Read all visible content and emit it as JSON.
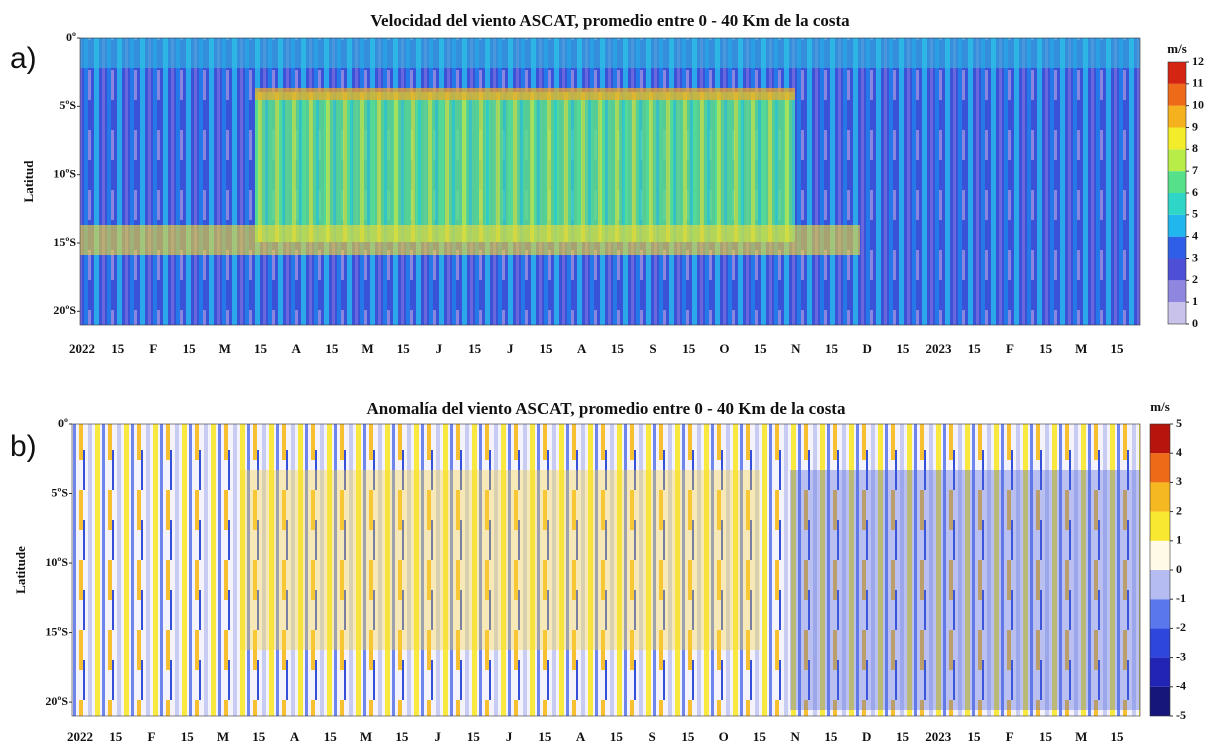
{
  "chart_data": [
    {
      "type": "heatmap",
      "panel_label": "a)",
      "title": "Velocidad del viento ASCAT, promedio entre 0 - 40 Km de la costa",
      "ylabel": "Latitud",
      "ylim": [
        -21,
        0
      ],
      "yticks": [
        {
          "value": 0,
          "label": "0º"
        },
        {
          "value": -5,
          "label": "5ºS"
        },
        {
          "value": -10,
          "label": "10ºS"
        },
        {
          "value": -15,
          "label": "15ºS"
        },
        {
          "value": -20,
          "label": "20ºS"
        }
      ],
      "categories": [
        "2022",
        "15",
        "F",
        "15",
        "M",
        "15",
        "A",
        "15",
        "M",
        "15",
        "J",
        "15",
        "J",
        "15",
        "A",
        "15",
        "S",
        "15",
        "O",
        "15",
        "N",
        "15",
        "D",
        "15",
        "2023",
        "15",
        "F",
        "15",
        "M",
        "15"
      ],
      "colorbar": {
        "label": "m/s",
        "lim": [
          0,
          12
        ],
        "ticks": [
          0,
          1,
          2,
          3,
          4,
          5,
          6,
          7,
          8,
          9,
          10,
          11,
          12
        ],
        "colors": [
          "#c9c3ec",
          "#8f86e0",
          "#4d4fd6",
          "#2f5fe6",
          "#22b6ee",
          "#2fd6c8",
          "#56e08a",
          "#b8ec46",
          "#f2ec2a",
          "#f6b21e",
          "#ee6a18",
          "#d42412"
        ]
      }
    },
    {
      "type": "heatmap",
      "panel_label": "b)",
      "title": "Anomalía del viento ASCAT, promedio entre 0 - 40 Km de la costa",
      "ylabel": "Latitude",
      "ylim": [
        -21,
        0
      ],
      "yticks": [
        {
          "value": 0,
          "label": "0º"
        },
        {
          "value": -5,
          "label": "5ºS"
        },
        {
          "value": -10,
          "label": "10ºS"
        },
        {
          "value": -15,
          "label": "15ºS"
        },
        {
          "value": -20,
          "label": "20ºS"
        }
      ],
      "categories": [
        "2022",
        "15",
        "F",
        "15",
        "M",
        "15",
        "A",
        "15",
        "M",
        "15",
        "J",
        "15",
        "J",
        "15",
        "A",
        "15",
        "S",
        "15",
        "O",
        "15",
        "N",
        "15",
        "D",
        "15",
        "2023",
        "15",
        "F",
        "15",
        "M",
        "15"
      ],
      "colorbar": {
        "label": "m/s",
        "lim": [
          -5,
          5
        ],
        "ticks": [
          -5,
          -4,
          -3,
          -2,
          -1,
          0,
          1,
          2,
          3,
          4,
          5
        ],
        "colors": [
          "#16167a",
          "#2124b4",
          "#2f46dc",
          "#5a78ec",
          "#b4bcf2",
          "#fffbe6",
          "#f8e830",
          "#f6b820",
          "#ee6a18",
          "#b8140e"
        ]
      }
    }
  ]
}
